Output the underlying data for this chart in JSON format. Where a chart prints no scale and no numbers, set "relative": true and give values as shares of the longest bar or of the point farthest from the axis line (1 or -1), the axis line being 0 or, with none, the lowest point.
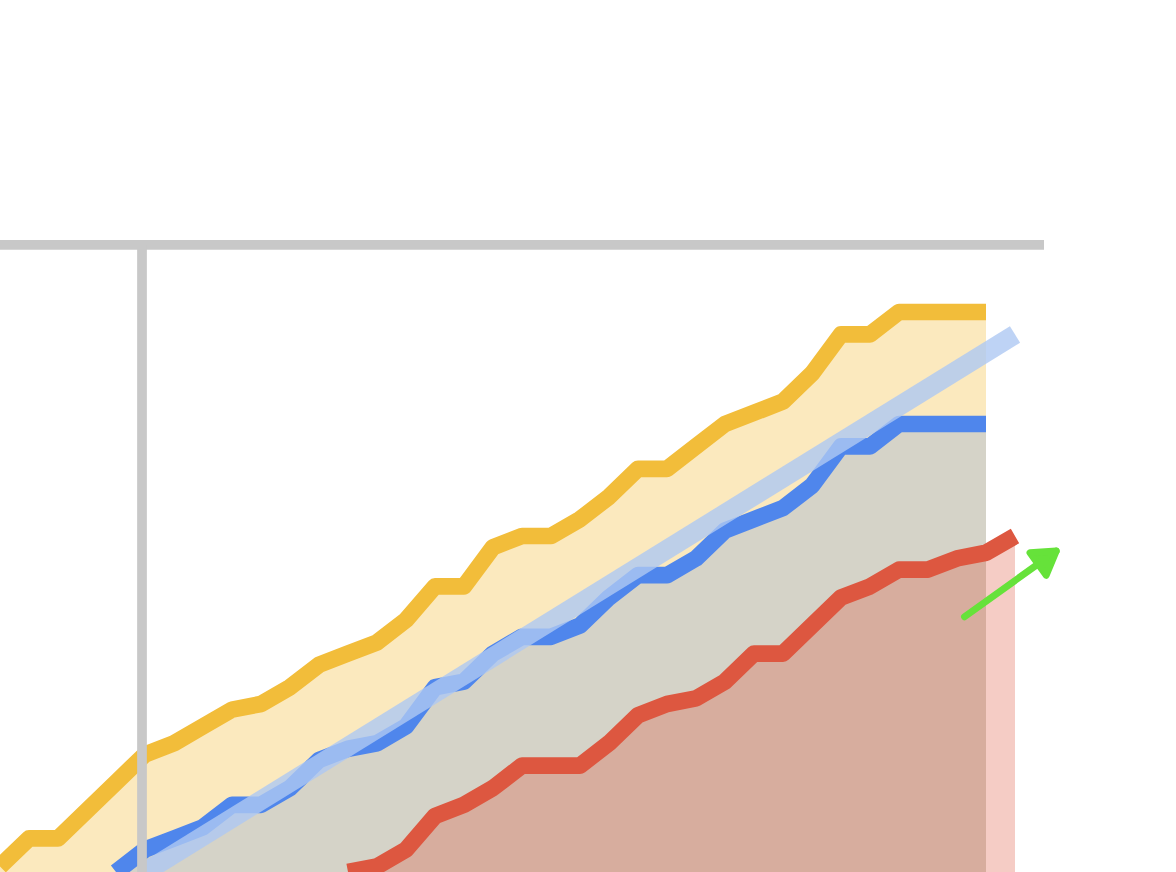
{
  "chart_data": {
    "type": "area",
    "relative": true,
    "legend": false,
    "line_style": "solid",
    "marker": "none",
    "categories": [
      null,
      null,
      null,
      null,
      null,
      null,
      null,
      null,
      null,
      null,
      null,
      null,
      null,
      null,
      null,
      null,
      null,
      null,
      null,
      null,
      null,
      null,
      null,
      null,
      null,
      null,
      null,
      null,
      null,
      null,
      null,
      null,
      null,
      null,
      null,
      null
    ],
    "series": [
      {
        "color": "#f2bd3a",
        "values": [
          0.01,
          0.06,
          0.06,
          0.11,
          0.16,
          0.21,
          0.23,
          0.26,
          0.29,
          0.3,
          0.33,
          0.37,
          0.39,
          0.41,
          0.45,
          0.51,
          0.51,
          0.58,
          0.6,
          0.6,
          0.63,
          0.67,
          0.72,
          0.72,
          0.76,
          0.8,
          0.82,
          0.84,
          0.89,
          0.96,
          0.96,
          1,
          1,
          1,
          1,
          null
        ]
      },
      {
        "color": "#4f86ec",
        "values": [
          null,
          null,
          null,
          null,
          0,
          0.04,
          0.06,
          0.08,
          0.12,
          0.12,
          0.15,
          0.2,
          0.22,
          0.23,
          0.26,
          0.33,
          0.34,
          0.39,
          0.42,
          0.42,
          0.44,
          0.49,
          0.53,
          0.53,
          0.56,
          0.61,
          0.63,
          0.65,
          0.69,
          0.76,
          0.76,
          0.8,
          0.8,
          0.8,
          0.8,
          null
        ]
      },
      {
        "color": "#dd5740",
        "values": [
          null,
          null,
          null,
          null,
          null,
          null,
          null,
          null,
          null,
          null,
          null,
          null,
          0,
          0.01,
          0.04,
          0.1,
          0.12,
          0.15,
          0.19,
          0.19,
          0.19,
          0.23,
          0.28,
          0.3,
          0.31,
          0.34,
          0.39,
          0.39,
          0.44,
          0.49,
          0.51,
          0.54,
          0.54,
          0.56,
          0.57,
          0.6
        ]
      },
      {
        "type": "line",
        "color": "#aec8f2",
        "values": [
          null,
          null,
          null,
          null,
          null,
          0,
          null,
          null,
          null,
          null,
          null,
          null,
          null,
          null,
          null,
          null,
          null,
          null,
          null,
          null,
          null,
          null,
          null,
          null,
          null,
          null,
          null,
          null,
          null,
          null,
          null,
          null,
          null,
          null,
          null,
          0.96
        ]
      }
    ],
    "ref_lines": [
      {
        "axis": "y",
        "value": 1.12,
        "color": "#c8c8c8"
      }
    ]
  }
}
